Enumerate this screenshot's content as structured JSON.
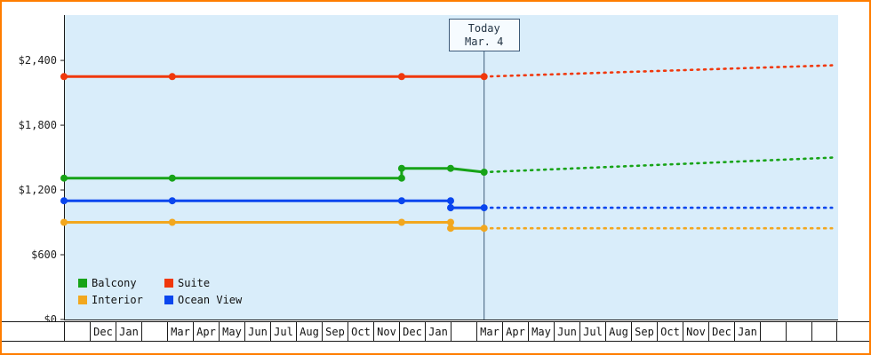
{
  "chart_data": {
    "type": "line",
    "title": "",
    "xlabel": "",
    "ylabel": "",
    "currency": "USD",
    "grid": false,
    "legend_position": "bottom-left-inside-plot",
    "ylim": [
      0,
      2820
    ],
    "y_ticks": [
      {
        "label": "$0",
        "value": 0
      },
      {
        "label": "$600",
        "value": 600
      },
      {
        "label": "$1,200",
        "value": 1200
      },
      {
        "label": "$1,800",
        "value": 1800
      },
      {
        "label": "$2,400",
        "value": 2400
      }
    ],
    "x_axis": {
      "unit": "month_slot",
      "slot_count": 30
    },
    "x_months": [
      "",
      "Dec",
      "Jan",
      "",
      "Mar",
      "Apr",
      "May",
      "Jun",
      "Jul",
      "Aug",
      "Sep",
      "Oct",
      "Nov",
      "Dec",
      "Jan",
      "",
      "Mar",
      "Apr",
      "May",
      "Jun",
      "Jul",
      "Aug",
      "Sep",
      "Oct",
      "Nov",
      "Dec",
      "Jan",
      "",
      "",
      ""
    ],
    "today": {
      "slot": 16.3,
      "line1": "Today",
      "line2": "Mar. 4"
    },
    "series": [
      {
        "id": "suite",
        "name": "Suite",
        "color": "#f0380c",
        "solid_points": [
          [
            0,
            2250
          ],
          [
            4.2,
            2250
          ],
          [
            13.1,
            2250
          ],
          [
            16.3,
            2250
          ]
        ],
        "dotted_points": [
          [
            16.3,
            2250
          ],
          [
            29.8,
            2355
          ]
        ]
      },
      {
        "id": "balcony",
        "name": "Balcony",
        "color": "#17a317",
        "solid_points": [
          [
            0,
            1310
          ],
          [
            4.2,
            1310
          ],
          [
            13.1,
            1310
          ],
          [
            13.1,
            1400
          ],
          [
            15,
            1400
          ],
          [
            16.3,
            1365
          ]
        ],
        "dotted_points": [
          [
            16.3,
            1365
          ],
          [
            29.8,
            1500
          ]
        ]
      },
      {
        "id": "ocean-view",
        "name": "Ocean View",
        "color": "#0a46ee",
        "solid_points": [
          [
            0,
            1100
          ],
          [
            4.2,
            1100
          ],
          [
            13.1,
            1100
          ],
          [
            15,
            1100
          ],
          [
            15,
            1035
          ],
          [
            16.3,
            1035
          ]
        ],
        "dotted_points": [
          [
            16.3,
            1035
          ],
          [
            29.8,
            1035
          ]
        ]
      },
      {
        "id": "interior",
        "name": "Interior",
        "color": "#f2a71e",
        "solid_points": [
          [
            0,
            900
          ],
          [
            4.2,
            900
          ],
          [
            13.1,
            900
          ],
          [
            15,
            900
          ],
          [
            15,
            845
          ],
          [
            16.3,
            845
          ]
        ],
        "dotted_points": [
          [
            16.3,
            845
          ],
          [
            29.8,
            845
          ]
        ]
      }
    ],
    "legend_rows": [
      [
        {
          "label": "Balcony",
          "color": "#17a317"
        },
        {
          "label": "Suite",
          "color": "#f0380c"
        }
      ],
      [
        {
          "label": "Interior",
          "color": "#f2a71e"
        },
        {
          "label": "Ocean View",
          "color": "#0a46ee"
        }
      ]
    ],
    "colors": {
      "plot_background": "#d9edfa",
      "frame_border": "#ff7d00",
      "today_line": "#3d5a78",
      "axis": "#1a1a1a"
    }
  }
}
